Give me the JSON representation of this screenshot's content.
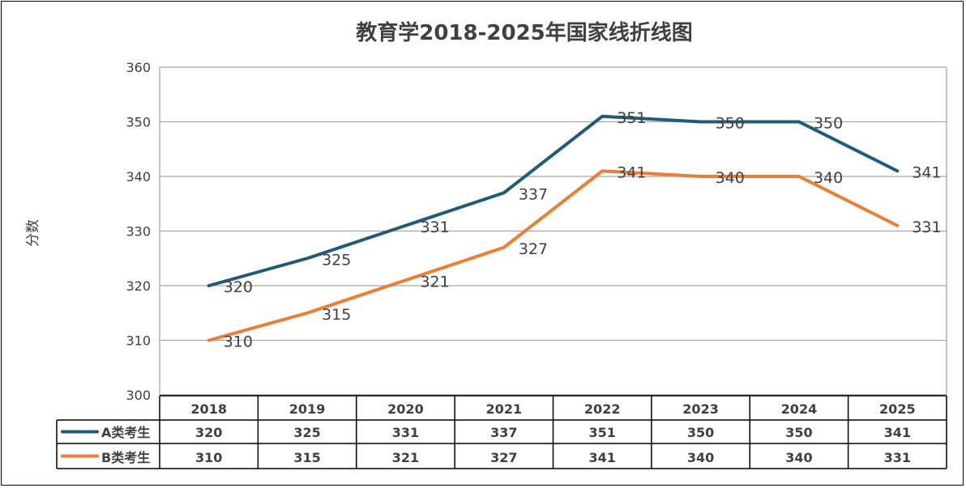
{
  "chart_data": {
    "type": "line",
    "title": "教育学2018-2025年国家线折线图",
    "ylabel": "分数",
    "xlabel": "",
    "ylim": [
      300,
      360
    ],
    "yticks": [
      300,
      310,
      320,
      330,
      340,
      350,
      360
    ],
    "grid": true,
    "legend": "data-table",
    "categories": [
      "2018",
      "2019",
      "2020",
      "2021",
      "2022",
      "2023",
      "2024",
      "2025"
    ],
    "series": [
      {
        "name": "A类考生",
        "color": "#1f5c7a",
        "values": [
          320,
          325,
          331,
          337,
          351,
          350,
          350,
          341
        ]
      },
      {
        "name": "B类考生",
        "color": "#ed7d31",
        "values": [
          310,
          315,
          321,
          327,
          341,
          340,
          340,
          331
        ]
      }
    ]
  }
}
